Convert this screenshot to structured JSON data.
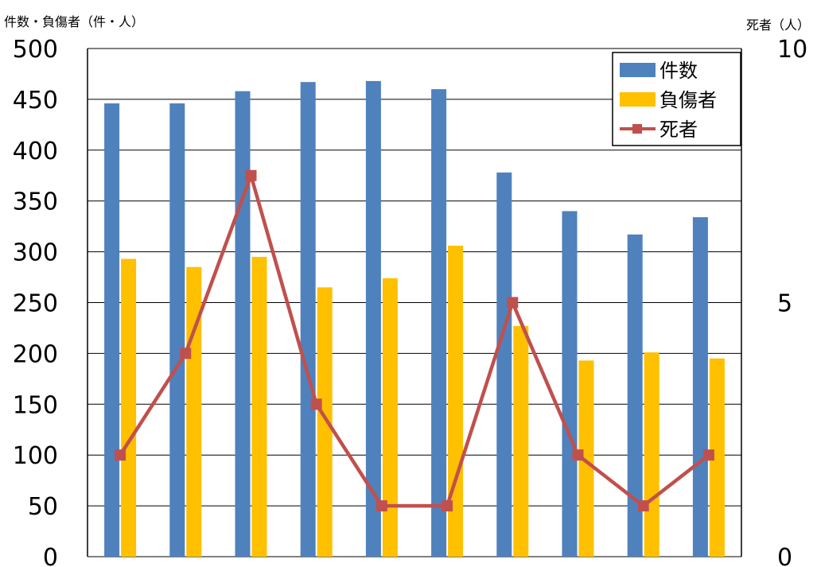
{
  "chart_data": {
    "type": "bar",
    "categories": [
      "",
      "",
      "",
      "",
      "",
      "",
      "",
      "",
      "",
      ""
    ],
    "y_left": {
      "label": "件数・負傷者（件・人）",
      "ylim": [
        0,
        500
      ],
      "ticks": [
        "0",
        "50",
        "100",
        "150",
        "200",
        "250",
        "300",
        "350",
        "400",
        "450",
        "500"
      ]
    },
    "y_right": {
      "label": "死者（人）",
      "ylim": [
        0,
        10
      ],
      "ticks": [
        "0",
        "5",
        "10"
      ]
    },
    "grid": true,
    "legend_position": "top-right",
    "series": [
      {
        "name": "件数",
        "type": "bar",
        "axis": "left",
        "color": "#4F81BD",
        "values": [
          446,
          446,
          458,
          467,
          468,
          460,
          378,
          340,
          317,
          334
        ]
      },
      {
        "name": "負傷者",
        "type": "bar",
        "axis": "left",
        "color": "#FFC000",
        "values": [
          293,
          285,
          295,
          265,
          274,
          306,
          227,
          193,
          201,
          195
        ]
      },
      {
        "name": "死者",
        "type": "line",
        "axis": "right",
        "color": "#C0504D",
        "marker": "square",
        "values": [
          2,
          4,
          7.5,
          3,
          1,
          1,
          5,
          2,
          1,
          2
        ]
      }
    ]
  }
}
